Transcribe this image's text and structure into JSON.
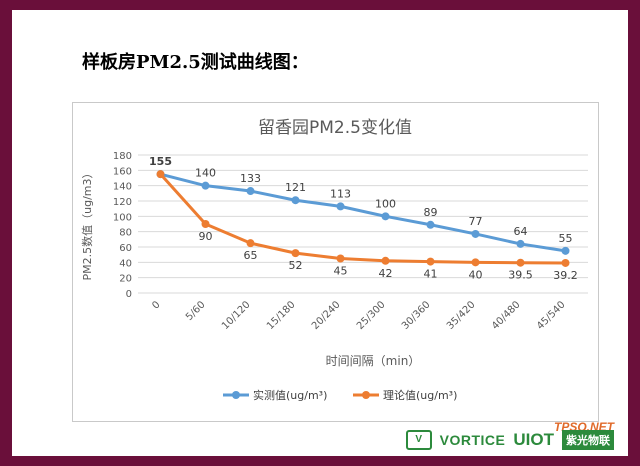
{
  "heading": "样板房PM2.5测试曲线图：",
  "chart_data": {
    "type": "line",
    "title": "留香园PM2.5变化值",
    "xlabel": "时间间隔（min）",
    "ylabel": "PM2.5数值（ug/m3）",
    "ylim": [
      0,
      180
    ],
    "yticks": [
      0,
      20,
      40,
      60,
      80,
      100,
      120,
      140,
      160,
      180
    ],
    "categories": [
      "0",
      "5/60",
      "10/120",
      "15/180",
      "20/240",
      "25/300",
      "30/360",
      "35/420",
      "40/480",
      "45/540"
    ],
    "grid": true,
    "legend_position": "bottom",
    "series": [
      {
        "name": "实测值(ug/m³)",
        "color": "#5b9bd5",
        "values": [
          155,
          140,
          133,
          121,
          113,
          100,
          89,
          77,
          64,
          55
        ],
        "labels": [
          "155",
          "140",
          "133",
          "121",
          "113",
          "100",
          "89",
          "77",
          "64",
          "55"
        ]
      },
      {
        "name": "理论值(ug/m³)",
        "color": "#ed7d31",
        "values": [
          155,
          90,
          65,
          52,
          45,
          42,
          41,
          40,
          39.5,
          39.2
        ],
        "labels": [
          "",
          "90",
          "65",
          "52",
          "45",
          "42",
          "41",
          "40",
          "39.5",
          "39.2"
        ]
      }
    ]
  },
  "footer": {
    "watermark": "TPSQ.NET",
    "vortice_mark": "V",
    "vortice_name": "VORTICE",
    "uiot_name": "UIOT",
    "brand_cn": "紫光物联"
  }
}
